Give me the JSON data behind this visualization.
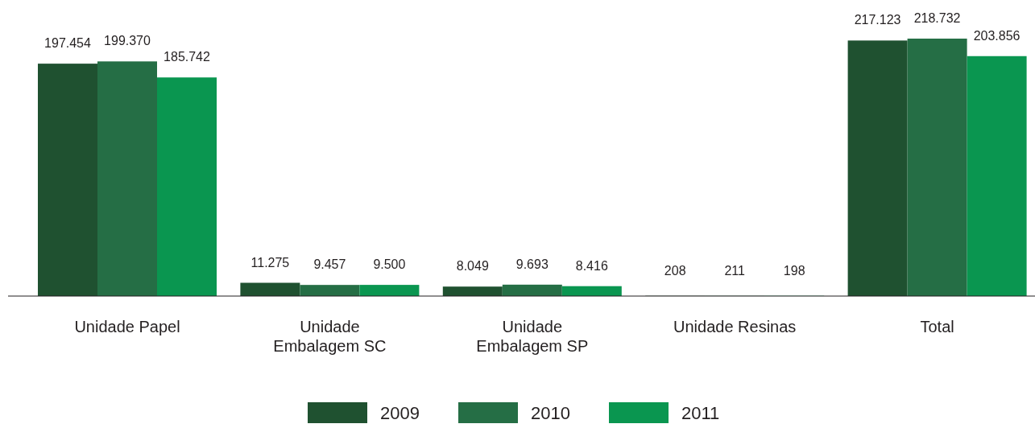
{
  "chart_data": {
    "type": "bar",
    "categories": [
      "Unidade Papel",
      "Unidade Embalagem SC",
      "Unidade Embalagem SP",
      "Unidade Resinas",
      "Total"
    ],
    "series": [
      {
        "name": "2009",
        "color": "#1f5130",
        "values": [
          197454,
          11275,
          8049,
          208,
          217123
        ],
        "value_labels": [
          "197.454",
          "11.275",
          "8.049",
          "208",
          "217.123"
        ]
      },
      {
        "name": "2010",
        "color": "#256e45",
        "values": [
          199370,
          9457,
          9693,
          211,
          218732
        ],
        "value_labels": [
          "199.370",
          "9.457",
          "9.693",
          "211",
          "218.732"
        ]
      },
      {
        "name": "2011",
        "color": "#0a9650",
        "values": [
          185742,
          9500,
          8416,
          198,
          203856
        ],
        "value_labels": [
          "185.742",
          "9.500",
          "8.416",
          "198",
          "203.856"
        ]
      }
    ],
    "legend": "bottom"
  }
}
